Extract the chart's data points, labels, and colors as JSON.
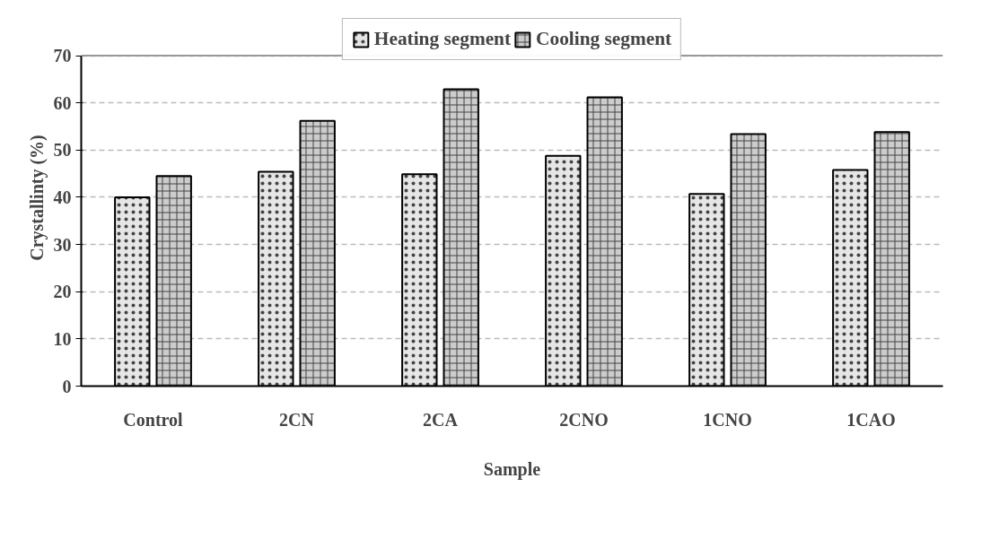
{
  "chart_data": {
    "type": "bar",
    "xlabel": "Sample",
    "ylabel": "Crystallinty (%)",
    "categories": [
      "Control",
      "2CN",
      "2CA",
      "2CNO",
      "1CNO",
      "1CAO"
    ],
    "series": [
      {
        "name": "Heating segment",
        "color": "#e6e6e6",
        "values": [
          40.0,
          45.4,
          44.9,
          48.8,
          40.7,
          45.8
        ]
      },
      {
        "name": "Cooling segment",
        "color": "#cccccc",
        "values": [
          44.5,
          56.2,
          62.9,
          61.2,
          53.4,
          53.8
        ]
      }
    ],
    "ylim": [
      0,
      70
    ],
    "yticks": [
      0,
      10,
      20,
      30,
      40,
      50,
      60,
      70
    ],
    "grid": "y",
    "legend": "top"
  }
}
